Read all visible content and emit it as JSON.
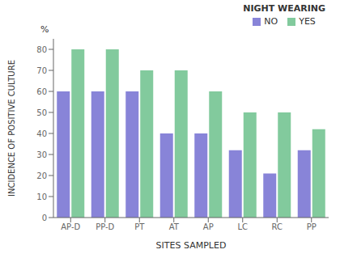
{
  "chart_data": {
    "type": "bar",
    "categories": [
      "AP-D",
      "PP-D",
      "PT",
      "AT",
      "AP",
      "LC",
      "RC",
      "PP"
    ],
    "series": [
      {
        "name": "NO",
        "color": "#8884d8",
        "values": [
          60,
          60,
          60,
          40,
          40,
          32,
          21,
          32
        ]
      },
      {
        "name": "YES",
        "color": "#82ca9d",
        "values": [
          80,
          80,
          70,
          70,
          60,
          50,
          50,
          42
        ]
      }
    ],
    "xlabel": "SITES SAMPLED",
    "ylabel": "INCIDENCE OF POSITIVE CULTURE",
    "annotations": [
      "%"
    ],
    "legend_title": "NIGHT WEARING",
    "legend": "upper right",
    "ylim": [
      0,
      85
    ],
    "yticks": [
      0,
      10,
      20,
      30,
      40,
      50,
      60,
      70,
      80
    ],
    "grid": false
  }
}
